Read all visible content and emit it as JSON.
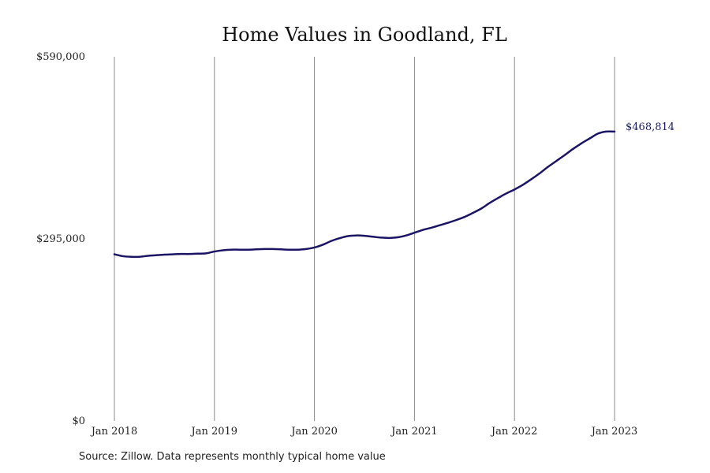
{
  "colors": {
    "line": "#1b1464",
    "grid": "#8a8a8a",
    "text": "#222222"
  },
  "chart_data": {
    "type": "line",
    "title": "Home Values in Goodland, FL",
    "xlabel": "",
    "ylabel": "",
    "y_ticks": [
      {
        "value": 0,
        "label": "$0"
      },
      {
        "value": 295000,
        "label": "$295,000"
      },
      {
        "value": 590000,
        "label": "$590,000"
      }
    ],
    "x_ticks": [
      {
        "value": "2018-01",
        "label": "Jan 2018"
      },
      {
        "value": "2019-01",
        "label": "Jan 2019"
      },
      {
        "value": "2020-01",
        "label": "Jan 2020"
      },
      {
        "value": "2021-01",
        "label": "Jan 2021"
      },
      {
        "value": "2022-01",
        "label": "Jan 2022"
      },
      {
        "value": "2023-01",
        "label": "Jan 2023"
      }
    ],
    "ylim": [
      0,
      590000
    ],
    "xlim": [
      "2018-01",
      "2023-01"
    ],
    "grid": "vertical",
    "end_label": "$468,814",
    "series": [
      {
        "x": [
          "2018-01",
          "2018-02",
          "2018-03",
          "2018-04",
          "2018-05",
          "2018-06",
          "2018-07",
          "2018-08",
          "2018-09",
          "2018-10",
          "2018-11",
          "2018-12",
          "2019-01",
          "2019-02",
          "2019-03",
          "2019-04",
          "2019-05",
          "2019-06",
          "2019-07",
          "2019-08",
          "2019-09",
          "2019-10",
          "2019-11",
          "2019-12",
          "2020-01",
          "2020-02",
          "2020-03",
          "2020-04",
          "2020-05",
          "2020-06",
          "2020-07",
          "2020-08",
          "2020-09",
          "2020-10",
          "2020-11",
          "2020-12",
          "2021-01",
          "2021-02",
          "2021-03",
          "2021-04",
          "2021-05",
          "2021-06",
          "2021-07",
          "2021-08",
          "2021-09",
          "2021-10",
          "2021-11",
          "2021-12",
          "2022-01",
          "2022-02",
          "2022-03",
          "2022-04",
          "2022-05",
          "2022-06",
          "2022-07",
          "2022-08",
          "2022-09",
          "2022-10",
          "2022-11",
          "2022-12",
          "2023-01"
        ],
        "values": [
          270000,
          267000,
          266000,
          266000,
          267500,
          268500,
          269500,
          270000,
          270500,
          270500,
          271000,
          271500,
          274500,
          276500,
          277500,
          277500,
          277500,
          278000,
          278500,
          278500,
          278000,
          277500,
          277500,
          278500,
          281000,
          285500,
          291500,
          296000,
          299500,
          300500,
          300000,
          298500,
          297000,
          296500,
          297500,
          300500,
          305000,
          309500,
          313000,
          317000,
          321000,
          325500,
          330500,
          337000,
          344000,
          353000,
          361000,
          368500,
          375000,
          382500,
          391500,
          401000,
          411500,
          421000,
          430500,
          440500,
          449500,
          457500,
          465500,
          468814,
          468814
        ]
      }
    ]
  },
  "source": "Source: Zillow. Data represents monthly typical home value"
}
